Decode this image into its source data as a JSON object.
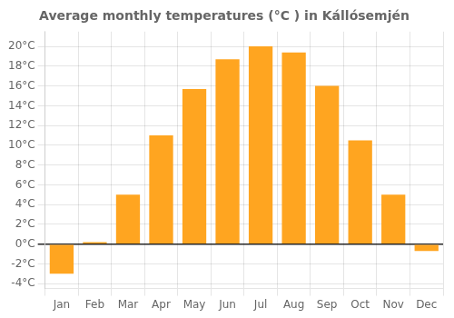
{
  "chart_data": {
    "type": "bar",
    "title": "Average monthly temperatures (°C ) in Kállósemjén",
    "categories": [
      "Jan",
      "Feb",
      "Mar",
      "Apr",
      "May",
      "Jun",
      "Jul",
      "Aug",
      "Sep",
      "Oct",
      "Nov",
      "Dec"
    ],
    "values": [
      -3.0,
      0.2,
      5.0,
      11.0,
      15.7,
      18.7,
      20.0,
      19.4,
      16.0,
      10.5,
      5.0,
      -0.7
    ],
    "color": "#FFA520",
    "ylim": [
      -4.5,
      21.5
    ],
    "yticks": [
      {
        "value": -4,
        "label": "-4°C"
      },
      {
        "value": -2,
        "label": "-2°C"
      },
      {
        "value": 0,
        "label": "0°C"
      },
      {
        "value": 2,
        "label": "2°C"
      },
      {
        "value": 4,
        "label": "4°C"
      },
      {
        "value": 6,
        "label": "6°C"
      },
      {
        "value": 8,
        "label": "8°C"
      },
      {
        "value": 10,
        "label": "10°C"
      },
      {
        "value": 12,
        "label": "12°C"
      },
      {
        "value": 14,
        "label": "14°C"
      },
      {
        "value": 16,
        "label": "16°C"
      },
      {
        "value": 18,
        "label": "18°C"
      },
      {
        "value": 20,
        "label": "20°C"
      }
    ],
    "grid": true
  }
}
